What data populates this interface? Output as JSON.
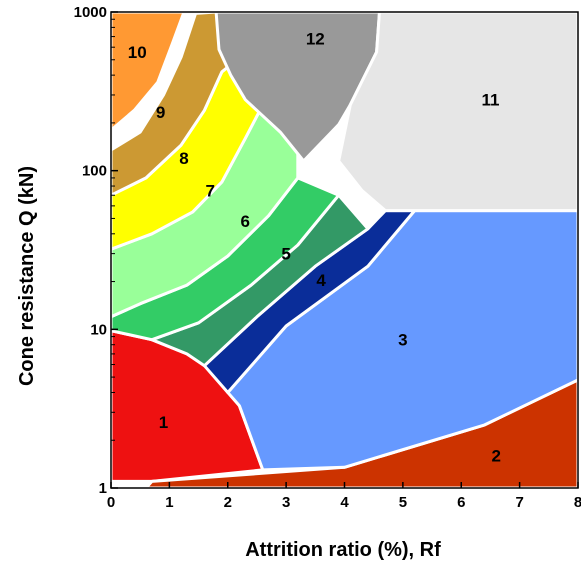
{
  "chart_data": {
    "type": "area",
    "title": "",
    "xlabel": "Attrition ratio (%), Rf",
    "ylabel": "Cone resistance Q (kN)",
    "xlim": [
      0,
      8
    ],
    "ylim": [
      1,
      1000
    ],
    "yscale": "log",
    "grid": false,
    "x_ticks": [
      "0",
      "1",
      "2",
      "3",
      "4",
      "5",
      "6",
      "7",
      "8"
    ],
    "y_ticks": [
      {
        "value": 1,
        "label": "1"
      },
      {
        "value": 10,
        "label": "10"
      },
      {
        "value": 100,
        "label": "100"
      },
      {
        "value": 1000,
        "label": "1000"
      }
    ],
    "zones": [
      {
        "label": "1",
        "color": "#ee1111",
        "label_at": [
          0.9,
          2.6
        ],
        "polygon": [
          [
            0,
            1.1
          ],
          [
            0,
            9.8
          ],
          [
            0.7,
            8.6
          ],
          [
            1.3,
            7.0
          ],
          [
            1.8,
            5.3
          ],
          [
            2.2,
            3.3
          ],
          [
            2.6,
            1.3
          ],
          [
            0.7,
            1.1
          ]
        ]
      },
      {
        "label": "2",
        "color": "#cc3300",
        "label_at": [
          6.6,
          1.6
        ],
        "polygon": [
          [
            0.7,
            1.1
          ],
          [
            4.0,
            1.35
          ],
          [
            6.4,
            2.5
          ],
          [
            8,
            4.8
          ],
          [
            8,
            1
          ],
          [
            0.6,
            1
          ]
        ]
      },
      {
        "label": "3",
        "color": "#6699ff",
        "label_at": [
          5.0,
          8.6
        ],
        "polygon": [
          [
            2.6,
            1.3
          ],
          [
            4.0,
            1.35
          ],
          [
            6.4,
            2.5
          ],
          [
            8,
            4.8
          ],
          [
            8,
            56
          ],
          [
            5.2,
            56
          ],
          [
            4.4,
            25
          ],
          [
            3.0,
            10.5
          ],
          [
            2.0,
            4.0
          ],
          [
            2.2,
            3.3
          ]
        ]
      },
      {
        "label": "4",
        "color": "#0a2d99",
        "label_at": [
          3.6,
          20.5
        ],
        "polygon": [
          [
            1.6,
            5.9
          ],
          [
            2.0,
            4.0
          ],
          [
            3.0,
            10.5
          ],
          [
            4.4,
            25
          ],
          [
            5.2,
            56
          ],
          [
            4.7,
            56
          ],
          [
            4.4,
            43
          ],
          [
            3.5,
            25
          ],
          [
            2.5,
            12
          ]
        ]
      },
      {
        "label": "5",
        "color": "#339966",
        "label_at": [
          3.0,
          30
        ],
        "polygon": [
          [
            0.7,
            8.6
          ],
          [
            1.5,
            11
          ],
          [
            2.4,
            19
          ],
          [
            3.2,
            34
          ],
          [
            3.9,
            70
          ],
          [
            4.4,
            43
          ],
          [
            3.5,
            25
          ],
          [
            2.5,
            12
          ],
          [
            1.6,
            5.9
          ],
          [
            1.3,
            7.0
          ]
        ]
      },
      {
        "label": "6",
        "color": "#33cc66",
        "label_at": [
          2.3,
          48
        ],
        "polygon": [
          [
            0,
            12
          ],
          [
            0.5,
            14.5
          ],
          [
            1.3,
            19
          ],
          [
            2.0,
            29
          ],
          [
            2.7,
            52
          ],
          [
            3.2,
            90
          ],
          [
            3.9,
            70
          ],
          [
            3.2,
            34
          ],
          [
            2.4,
            19
          ],
          [
            1.5,
            11
          ],
          [
            0.7,
            8.6
          ],
          [
            0,
            9.8
          ]
        ]
      },
      {
        "label": "7",
        "color": "#99ff99",
        "label_at": [
          1.7,
          75
        ],
        "polygon": [
          [
            0,
            32
          ],
          [
            0.7,
            40
          ],
          [
            1.4,
            55
          ],
          [
            1.9,
            85
          ],
          [
            2.3,
            160
          ],
          [
            2.6,
            260
          ],
          [
            3.2,
            135
          ],
          [
            3.2,
            90
          ],
          [
            2.7,
            52
          ],
          [
            2.0,
            29
          ],
          [
            1.3,
            19
          ],
          [
            0.5,
            14.5
          ],
          [
            0,
            12
          ]
        ]
      },
      {
        "label": "8",
        "color": "#ffff00",
        "label_at": [
          1.25,
          120
        ],
        "polygon": [
          [
            0,
            70
          ],
          [
            0.6,
            90
          ],
          [
            1.2,
            145
          ],
          [
            1.6,
            240
          ],
          [
            1.9,
            420
          ],
          [
            2.3,
            550
          ],
          [
            2.6,
            260
          ],
          [
            2.3,
            160
          ],
          [
            1.9,
            85
          ],
          [
            1.4,
            55
          ],
          [
            0.7,
            40
          ],
          [
            0,
            32
          ]
        ]
      },
      {
        "label": "9",
        "color": "#cc9933",
        "label_at": [
          0.85,
          235
        ],
        "polygon": [
          [
            0,
            135
          ],
          [
            0.5,
            175
          ],
          [
            0.9,
            300
          ],
          [
            1.2,
            520
          ],
          [
            1.45,
            980
          ],
          [
            1.8,
            1000
          ],
          [
            2.3,
            550
          ],
          [
            1.9,
            420
          ],
          [
            1.6,
            240
          ],
          [
            1.2,
            145
          ],
          [
            0.6,
            90
          ],
          [
            0,
            70
          ]
        ]
      },
      {
        "label": "10",
        "color": "#ff9933",
        "label_at": [
          0.45,
          560
        ],
        "polygon": [
          [
            0,
            1000
          ],
          [
            1.25,
            1000
          ],
          [
            1.05,
            630
          ],
          [
            0.8,
            360
          ],
          [
            0.4,
            240
          ],
          [
            0,
            180
          ]
        ]
      },
      {
        "label": "12",
        "color": "#999999",
        "label_at": [
          3.5,
          680
        ],
        "polygon": [
          [
            1.8,
            1000
          ],
          [
            4.6,
            1000
          ],
          [
            4.55,
            560
          ],
          [
            4.1,
            260
          ],
          [
            3.9,
            195
          ],
          [
            3.3,
            115
          ],
          [
            2.9,
            175
          ],
          [
            2.3,
            280
          ],
          [
            2.05,
            400
          ],
          [
            1.85,
            580
          ]
        ]
      },
      {
        "label": "11",
        "color": "#e6e6e6",
        "label_at": [
          6.5,
          280
        ],
        "polygon": [
          [
            4.6,
            1000
          ],
          [
            8,
            1000
          ],
          [
            8,
            56
          ],
          [
            5.2,
            56
          ],
          [
            4.7,
            56
          ],
          [
            4.3,
            75
          ],
          [
            3.9,
            115
          ],
          [
            4.1,
            260
          ],
          [
            4.55,
            560
          ]
        ]
      }
    ]
  }
}
